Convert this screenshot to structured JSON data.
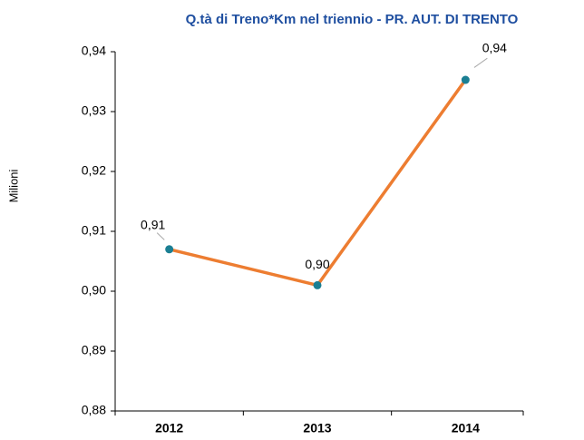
{
  "chart_data": {
    "type": "line",
    "title": "Q.tà di Treno*Km nel triennio - PR. AUT. DI TRENTO",
    "y_label": "Milioni",
    "categories": [
      "2012",
      "2013",
      "2014"
    ],
    "values": [
      0.907,
      0.901,
      0.9353
    ],
    "value_labels": [
      "0,91",
      "0,90",
      "0,94"
    ],
    "color": "#ed7d31",
    "marker_color": "#1b7f93",
    "ylim": [
      0.88,
      0.94
    ],
    "yticks": [
      {
        "value": 0.88,
        "label": "0,88"
      },
      {
        "value": 0.89,
        "label": "0,89"
      },
      {
        "value": 0.9,
        "label": "0,90"
      },
      {
        "value": 0.91,
        "label": "0,91"
      },
      {
        "value": 0.92,
        "label": "0,92"
      },
      {
        "value": 0.93,
        "label": "0,93"
      },
      {
        "value": 0.94,
        "label": "0,94"
      }
    ],
    "grid": false
  }
}
